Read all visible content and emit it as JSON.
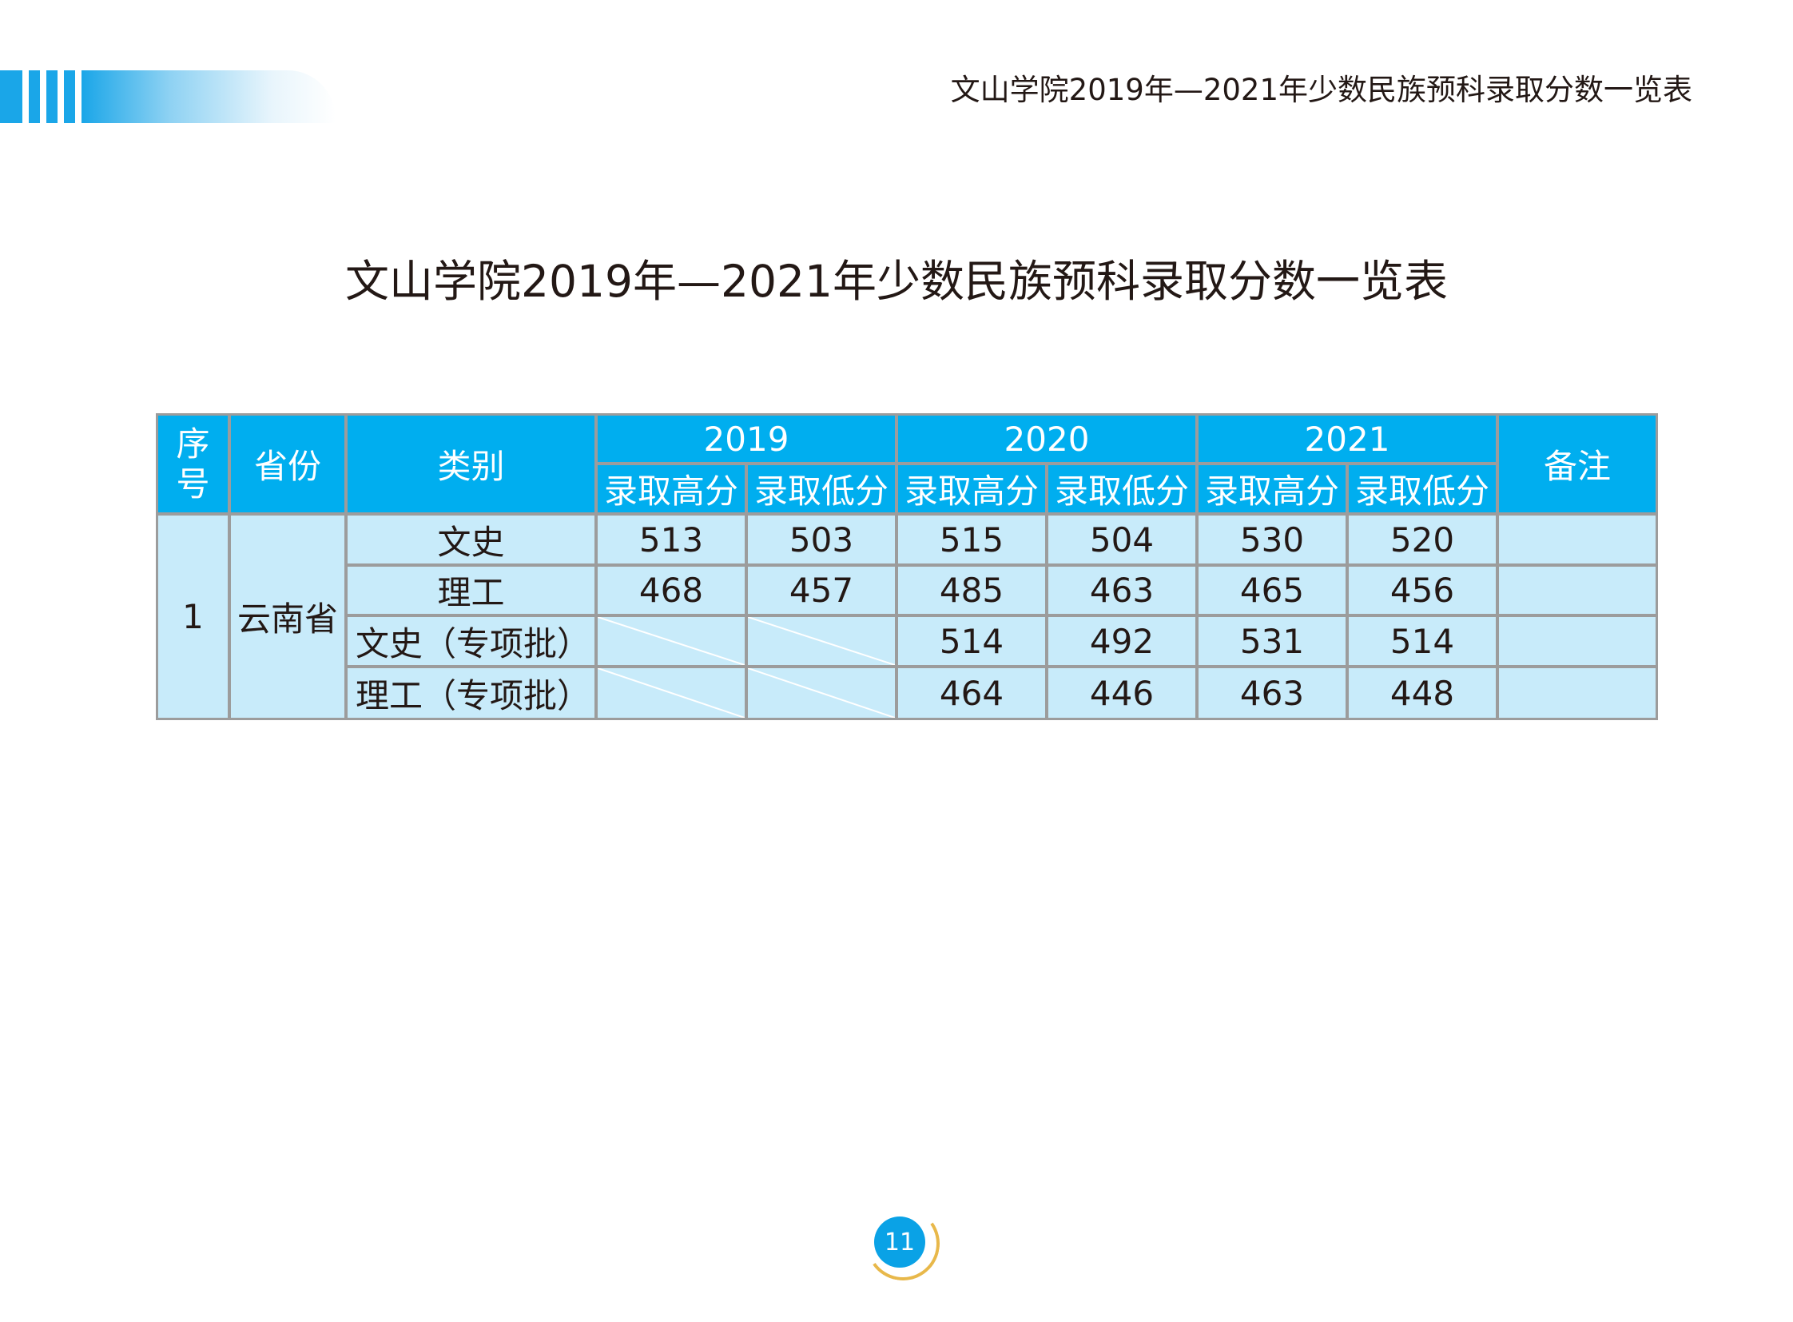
{
  "running_title": "文山学院2019年—2021年少数民族预科录取分数一览表",
  "title": "文山学院2019年—2021年少数民族预科录取分数一览表",
  "table": {
    "header": {
      "seq_top": "序",
      "seq_bottom": "号",
      "province": "省份",
      "category": "类别",
      "years": [
        "2019",
        "2020",
        "2021"
      ],
      "high": "录取高分",
      "low": "录取低分",
      "remark": "备注"
    },
    "seq": "1",
    "province": "云南省",
    "rows": [
      {
        "category": "文史",
        "values": [
          "513",
          "503",
          "515",
          "504",
          "530",
          "520"
        ]
      },
      {
        "category": "理工",
        "values": [
          "468",
          "457",
          "485",
          "463",
          "465",
          "456"
        ]
      },
      {
        "category": "文史（专项批）",
        "values": [
          "",
          "",
          "514",
          "492",
          "531",
          "514"
        ]
      },
      {
        "category": "理工（专项批）",
        "values": [
          "",
          "",
          "464",
          "446",
          "463",
          "448"
        ]
      }
    ]
  },
  "page_number": "11"
}
